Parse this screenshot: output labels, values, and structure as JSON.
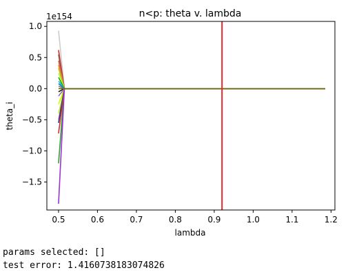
{
  "chart_data": {
    "type": "line",
    "title": "n<p: theta v. lambda",
    "xlabel": "lambda",
    "ylabel": "theta_i",
    "y_scale_label": "1e154",
    "xlim": [
      0.47,
      1.21
    ],
    "ylim": [
      -1.95,
      1.08
    ],
    "x_ticks": [
      "0.5",
      "0.6",
      "0.7",
      "0.8",
      "0.9",
      "1.0",
      "1.1",
      "1.2"
    ],
    "y_ticks": [
      "1.0",
      "0.5",
      "0.0",
      "−0.5",
      "−1.0",
      "−1.5"
    ],
    "x_tick_values": [
      0.5,
      0.6,
      0.7,
      0.8,
      0.9,
      1.0,
      1.1,
      1.2
    ],
    "y_tick_values": [
      1.0,
      0.5,
      0.0,
      -0.5,
      -1.0,
      -1.5
    ],
    "vline": {
      "x": 0.92,
      "color": "#e8262a"
    },
    "grid": false,
    "lambda_range": [
      0.5,
      1.185
    ],
    "series": [
      {
        "color": "#cccccc",
        "values": [
          0.93,
          0.0
        ]
      },
      {
        "color": "#d62728",
        "values": [
          0.62,
          0.0
        ]
      },
      {
        "color": "#8c564b",
        "values": [
          0.55,
          0.0
        ]
      },
      {
        "color": "#e45756",
        "values": [
          0.45,
          0.0
        ]
      },
      {
        "color": "#ff7f0e",
        "values": [
          0.38,
          0.0
        ]
      },
      {
        "color": "#bcbd22",
        "values": [
          0.33,
          0.0
        ]
      },
      {
        "color": "#adff2f",
        "values": [
          0.25,
          0.0
        ]
      },
      {
        "color": "#2ca02c",
        "values": [
          0.18,
          0.0
        ]
      },
      {
        "color": "#17becf",
        "values": [
          0.12,
          0.0
        ]
      },
      {
        "color": "#1f77b4",
        "values": [
          0.08,
          0.0
        ]
      },
      {
        "color": "#7f7f7f",
        "values": [
          0.04,
          0.0
        ]
      },
      {
        "color": "#111111",
        "values": [
          -0.05,
          0.0
        ]
      },
      {
        "color": "#9467bd",
        "values": [
          -0.12,
          0.0
        ]
      },
      {
        "color": "#ccff00",
        "values": [
          -0.25,
          0.0
        ]
      },
      {
        "color": "#adff2f",
        "values": [
          -0.4,
          0.0
        ]
      },
      {
        "color": "#e377c2",
        "values": [
          -0.5,
          0.0
        ]
      },
      {
        "color": "#1f3c88",
        "values": [
          -0.55,
          0.0
        ]
      },
      {
        "color": "#d62728",
        "values": [
          -0.72,
          0.0
        ]
      },
      {
        "color": "#2ca02c",
        "values": [
          -1.2,
          0.0
        ]
      },
      {
        "color": "#9b30d9",
        "values": [
          -1.85,
          0.0
        ]
      },
      {
        "color": "#6b6b00",
        "values": [
          0.0,
          0.0
        ]
      }
    ]
  },
  "output": {
    "params_line": "params selected: []",
    "error_line": "test error: 1.4160738183074826"
  }
}
